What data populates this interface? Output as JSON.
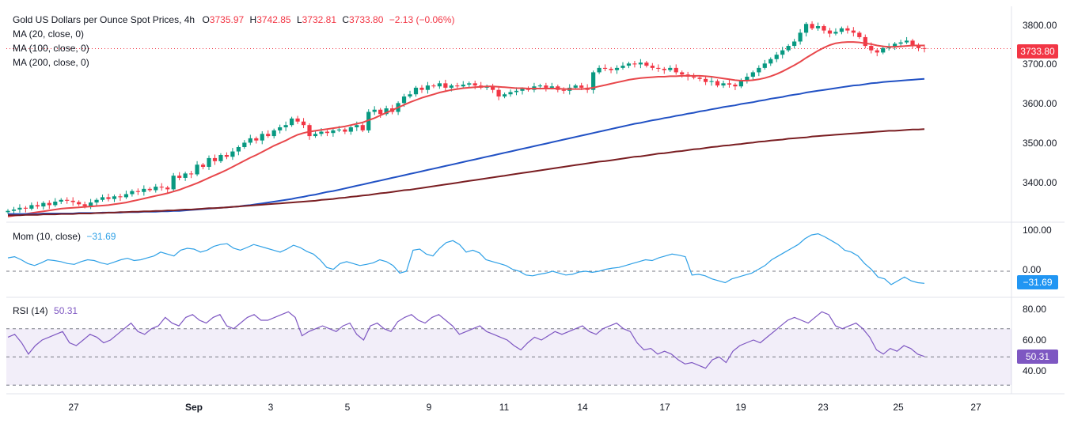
{
  "header": {
    "title": "Gold US Dollars per Ounce Spot Prices, 4h",
    "o_label": "O",
    "o": "3735.97",
    "h_label": "H",
    "h": "3742.85",
    "l_label": "L",
    "l": "3732.81",
    "c_label": "C",
    "c": "3733.80",
    "change": "−2.13 (−0.06%)"
  },
  "colors": {
    "up": "#089981",
    "down": "#f23645",
    "ma20": "#e8474b",
    "ma100": "#2151c4",
    "ma200": "#7a1e22",
    "mom": "#2ea0e6",
    "rsi": "#7e57c2"
  },
  "indicators": {
    "ma20": "MA (20, close, 0)",
    "ma100": "MA (100, close, 0)",
    "ma200": "MA (200, close, 0)",
    "mom_label": "Mom (10, close)",
    "mom_value": "−31.69",
    "rsi_label": "RSI (14)",
    "rsi_value": "50.31"
  },
  "price_axis": [
    "3800.00",
    "3700.00",
    "3600.00",
    "3500.00",
    "3400.00"
  ],
  "price_tag": "3733.80",
  "mom_axis": [
    "100.00",
    "0.00"
  ],
  "mom_tag": "−31.69",
  "rsi_axis": [
    "80.00",
    "60.00",
    "40.00"
  ],
  "rsi_tag": "50.31",
  "time_axis": [
    "27",
    "Sep",
    "3",
    "5",
    "9",
    "11",
    "14",
    "17",
    "19",
    "23",
    "25",
    "27"
  ],
  "chart_data": [
    {
      "type": "candlestick",
      "title": "Gold US Dollars per Ounce Spot Prices, 4h",
      "ylim": [
        3350,
        3830
      ],
      "x_ticks": [
        "27",
        "Sep",
        "3",
        "5",
        "9",
        "11",
        "14",
        "17",
        "19",
        "23",
        "25",
        "27"
      ],
      "ohlc_close": [
        3365,
        3368,
        3372,
        3370,
        3378,
        3375,
        3383,
        3378,
        3386,
        3390,
        3388,
        3385,
        3380,
        3376,
        3384,
        3390,
        3396,
        3392,
        3398,
        3396,
        3403,
        3410,
        3408,
        3415,
        3412,
        3420,
        3418,
        3414,
        3445,
        3440,
        3450,
        3448,
        3470,
        3465,
        3485,
        3478,
        3492,
        3488,
        3500,
        3510,
        3520,
        3530,
        3525,
        3540,
        3535,
        3548,
        3555,
        3560,
        3575,
        3568,
        3560,
        3535,
        3540,
        3545,
        3542,
        3548,
        3550,
        3545,
        3555,
        3560,
        3548,
        3590,
        3595,
        3585,
        3598,
        3590,
        3610,
        3625,
        3630,
        3645,
        3640,
        3650,
        3648,
        3655,
        3645,
        3650,
        3648,
        3652,
        3655,
        3650,
        3645,
        3648,
        3640,
        3625,
        3630,
        3635,
        3638,
        3642,
        3640,
        3648,
        3650,
        3645,
        3648,
        3640,
        3638,
        3645,
        3650,
        3645,
        3640,
        3680,
        3690,
        3688,
        3685,
        3690,
        3695,
        3700,
        3698,
        3702,
        3695,
        3690,
        3688,
        3685,
        3690,
        3680,
        3675,
        3670,
        3668,
        3665,
        3658,
        3660,
        3650,
        3655,
        3652,
        3648,
        3660,
        3670,
        3680,
        3690,
        3700,
        3710,
        3720,
        3730,
        3740,
        3750,
        3770,
        3790,
        3780,
        3785,
        3775,
        3768,
        3772,
        3780,
        3775,
        3770,
        3760,
        3740,
        3730,
        3725,
        3735,
        3738,
        3745,
        3748,
        3752,
        3740,
        3735,
        3733.8
      ],
      "series": [
        {
          "name": "MA (20, close, 0)",
          "values": [
            3352,
            3354,
            3356,
            3358,
            3360,
            3362,
            3364,
            3366,
            3368,
            3370,
            3371,
            3372,
            3373,
            3374,
            3375,
            3376,
            3377,
            3378,
            3380,
            3382,
            3384,
            3387,
            3390,
            3393,
            3396,
            3399,
            3402,
            3405,
            3409,
            3413,
            3418,
            3423,
            3428,
            3434,
            3440,
            3446,
            3452,
            3458,
            3465,
            3472,
            3479,
            3486,
            3492,
            3499,
            3506,
            3513,
            3519,
            3525,
            3532,
            3538,
            3542,
            3545,
            3547,
            3549,
            3551,
            3553,
            3555,
            3557,
            3560,
            3563,
            3566,
            3571,
            3576,
            3582,
            3588,
            3594,
            3600,
            3606,
            3612,
            3617,
            3622,
            3626,
            3630,
            3634,
            3637,
            3640,
            3642,
            3644,
            3645,
            3646,
            3647,
            3648,
            3648,
            3647,
            3646,
            3645,
            3644,
            3644,
            3643,
            3643,
            3643,
            3643,
            3643,
            3643,
            3642,
            3642,
            3642,
            3642,
            3643,
            3645,
            3648,
            3651,
            3654,
            3657,
            3660,
            3663,
            3665,
            3667,
            3668,
            3669,
            3670,
            3670,
            3671,
            3671,
            3672,
            3672,
            3672,
            3672,
            3671,
            3670,
            3668,
            3666,
            3664,
            3662,
            3661,
            3661,
            3662,
            3664,
            3667,
            3671,
            3676,
            3682,
            3689,
            3696,
            3704,
            3713,
            3721,
            3729,
            3736,
            3742,
            3746,
            3748,
            3749,
            3749,
            3748,
            3746,
            3744,
            3741,
            3739,
            3738,
            3738,
            3739,
            3740,
            3741,
            3741,
            3741
          ]
        },
        {
          "name": "MA (100, close, 0)",
          "values": [
            3358,
            3358,
            3358,
            3358,
            3358,
            3358,
            3359,
            3359,
            3359,
            3359,
            3359,
            3359,
            3360,
            3360,
            3360,
            3360,
            3361,
            3361,
            3361,
            3361,
            3362,
            3362,
            3362,
            3363,
            3363,
            3363,
            3364,
            3364,
            3365,
            3365,
            3366,
            3367,
            3368,
            3369,
            3370,
            3371,
            3372,
            3373,
            3374,
            3375,
            3377,
            3378,
            3380,
            3382,
            3384,
            3386,
            3388,
            3390,
            3392,
            3395,
            3397,
            3400,
            3402,
            3405,
            3408,
            3410,
            3413,
            3416,
            3419,
            3422,
            3425,
            3428,
            3431,
            3434,
            3437,
            3440,
            3443,
            3446,
            3449,
            3452,
            3455,
            3458,
            3461,
            3464,
            3467,
            3470,
            3473,
            3476,
            3479,
            3482,
            3485,
            3488,
            3491,
            3494,
            3497,
            3500,
            3503,
            3506,
            3509,
            3512,
            3515,
            3518,
            3521,
            3524,
            3527,
            3530,
            3533,
            3536,
            3539,
            3542,
            3545,
            3548,
            3551,
            3554,
            3557,
            3560,
            3563,
            3565,
            3568,
            3571,
            3573,
            3576,
            3578,
            3581,
            3583,
            3586,
            3588,
            3591,
            3593,
            3596,
            3598,
            3601,
            3603,
            3605,
            3608,
            3610,
            3612,
            3615,
            3617,
            3620,
            3622,
            3624,
            3627,
            3629,
            3631,
            3634,
            3636,
            3638,
            3640,
            3642,
            3644,
            3646,
            3648,
            3650,
            3651,
            3653,
            3655,
            3656,
            3658,
            3659,
            3660,
            3661,
            3662,
            3663,
            3664,
            3665
          ]
        },
        {
          "name": "MA (200, close, 0)",
          "values": [
            3355,
            3355,
            3355,
            3356,
            3356,
            3356,
            3357,
            3357,
            3357,
            3358,
            3358,
            3358,
            3359,
            3359,
            3359,
            3360,
            3360,
            3361,
            3361,
            3362,
            3362,
            3363,
            3363,
            3364,
            3364,
            3365,
            3365,
            3366,
            3366,
            3367,
            3368,
            3368,
            3369,
            3370,
            3371,
            3371,
            3372,
            3373,
            3374,
            3375,
            3376,
            3377,
            3378,
            3379,
            3380,
            3381,
            3382,
            3383,
            3384,
            3385,
            3386,
            3387,
            3388,
            3390,
            3391,
            3392,
            3394,
            3395,
            3397,
            3398,
            3400,
            3401,
            3403,
            3405,
            3406,
            3408,
            3410,
            3412,
            3413,
            3415,
            3417,
            3419,
            3421,
            3423,
            3425,
            3427,
            3429,
            3431,
            3433,
            3435,
            3437,
            3439,
            3441,
            3443,
            3445,
            3447,
            3449,
            3451,
            3453,
            3455,
            3457,
            3459,
            3461,
            3463,
            3465,
            3467,
            3469,
            3471,
            3473,
            3475,
            3477,
            3478,
            3480,
            3482,
            3484,
            3486,
            3488,
            3489,
            3491,
            3493,
            3495,
            3496,
            3498,
            3500,
            3501,
            3503,
            3505,
            3506,
            3508,
            3510,
            3511,
            3513,
            3514,
            3516,
            3517,
            3519,
            3520,
            3522,
            3523,
            3525,
            3526,
            3527,
            3529,
            3530,
            3531,
            3532,
            3534,
            3535,
            3536,
            3537,
            3538,
            3539,
            3540,
            3541,
            3542,
            3543,
            3544,
            3545,
            3546,
            3547,
            3547,
            3548,
            3549,
            3550,
            3550,
            3551
          ]
        }
      ],
      "last_close": 3733.8
    },
    {
      "type": "line",
      "title": "Mom (10, close)",
      "ylim": [
        -60,
        120
      ],
      "series": [
        {
          "name": "Mom (10, close)",
          "values": [
            35,
            38,
            30,
            20,
            15,
            22,
            30,
            28,
            25,
            20,
            18,
            25,
            30,
            28,
            22,
            18,
            24,
            30,
            34,
            28,
            30,
            35,
            40,
            50,
            45,
            40,
            55,
            60,
            58,
            50,
            55,
            65,
            70,
            72,
            60,
            55,
            62,
            70,
            65,
            60,
            55,
            50,
            58,
            68,
            62,
            52,
            45,
            30,
            10,
            5,
            20,
            25,
            20,
            15,
            18,
            22,
            30,
            25,
            15,
            -5,
            0,
            55,
            58,
            45,
            40,
            60,
            75,
            80,
            70,
            50,
            55,
            48,
            30,
            25,
            20,
            15,
            5,
            0,
            -10,
            -12,
            -8,
            -5,
            0,
            -5,
            -10,
            -8,
            -2,
            0,
            -3,
            0,
            5,
            8,
            10,
            15,
            20,
            25,
            30,
            28,
            35,
            40,
            45,
            42,
            38,
            -10,
            -8,
            -12,
            -20,
            -25,
            -30,
            -20,
            -15,
            -10,
            -5,
            5,
            15,
            30,
            40,
            50,
            60,
            70,
            85,
            95,
            98,
            90,
            80,
            70,
            55,
            50,
            40,
            20,
            5,
            -15,
            -20,
            -35,
            -25,
            -15,
            -25,
            -30,
            -31.69
          ]
        }
      ]
    },
    {
      "type": "line",
      "title": "RSI (14)",
      "ylim": [
        25,
        90
      ],
      "series": [
        {
          "name": "RSI (14)",
          "values": [
            64,
            66,
            60,
            52,
            58,
            62,
            64,
            66,
            68,
            60,
            58,
            62,
            66,
            64,
            60,
            62,
            66,
            70,
            74,
            68,
            66,
            70,
            72,
            78,
            74,
            72,
            78,
            80,
            76,
            74,
            78,
            80,
            72,
            70,
            74,
            78,
            80,
            76,
            76,
            78,
            80,
            82,
            78,
            65,
            68,
            70,
            72,
            70,
            68,
            72,
            74,
            66,
            62,
            72,
            74,
            70,
            68,
            75,
            78,
            80,
            76,
            74,
            78,
            80,
            76,
            72,
            66,
            68,
            70,
            72,
            68,
            66,
            64,
            62,
            58,
            55,
            60,
            64,
            62,
            65,
            68,
            66,
            68,
            70,
            72,
            68,
            66,
            70,
            72,
            74,
            70,
            68,
            60,
            55,
            56,
            52,
            54,
            52,
            48,
            45,
            46,
            44,
            42,
            48,
            50,
            46,
            54,
            58,
            60,
            62,
            60,
            64,
            68,
            72,
            76,
            78,
            76,
            74,
            78,
            82,
            80,
            72,
            70,
            72,
            74,
            70,
            64,
            55,
            52,
            56,
            54,
            58,
            56,
            52,
            50.31
          ]
        }
      ]
    }
  ]
}
